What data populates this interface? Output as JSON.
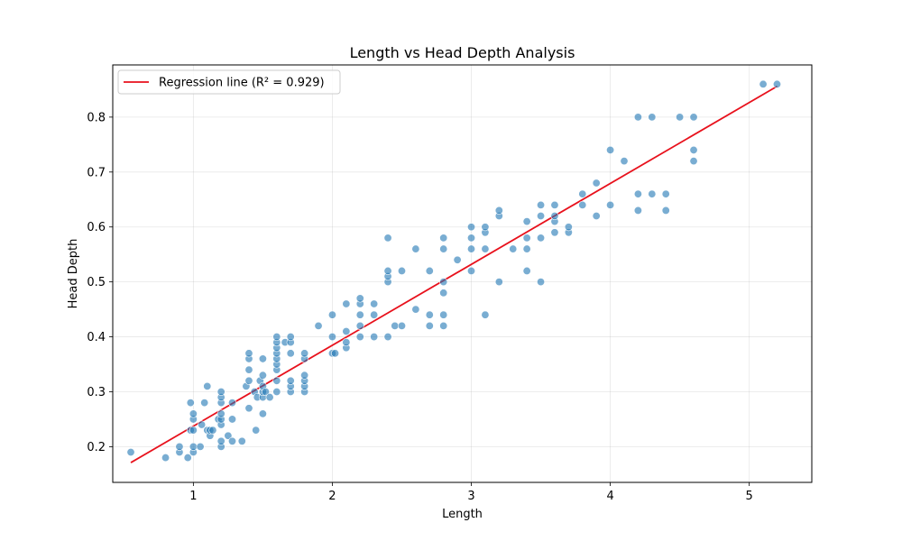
{
  "chart_data": {
    "type": "scatter",
    "title": "Length vs Head Depth Analysis",
    "xlabel": "Length",
    "ylabel": "Head Depth",
    "xlim": [
      0.42,
      5.45
    ],
    "ylim": [
      0.135,
      0.895
    ],
    "xticks": [
      1,
      2,
      3,
      4,
      5
    ],
    "yticks": [
      0.2,
      0.3,
      0.4,
      0.5,
      0.6,
      0.7,
      0.8
    ],
    "grid": true,
    "legend_position": "top-left",
    "colors": {
      "points": "#1f77b4",
      "line": "#e8111c"
    },
    "series": [
      {
        "type": "scatter",
        "points": [
          [
            0.55,
            0.19
          ],
          [
            0.8,
            0.18
          ],
          [
            0.9,
            0.19
          ],
          [
            0.9,
            0.2
          ],
          [
            0.96,
            0.18
          ],
          [
            0.98,
            0.23
          ],
          [
            0.98,
            0.28
          ],
          [
            1.0,
            0.19
          ],
          [
            1.0,
            0.2
          ],
          [
            1.0,
            0.23
          ],
          [
            1.0,
            0.25
          ],
          [
            1.0,
            0.26
          ],
          [
            1.05,
            0.2
          ],
          [
            1.06,
            0.24
          ],
          [
            1.08,
            0.28
          ],
          [
            1.1,
            0.23
          ],
          [
            1.1,
            0.31
          ],
          [
            1.12,
            0.22
          ],
          [
            1.12,
            0.23
          ],
          [
            1.14,
            0.23
          ],
          [
            1.18,
            0.25
          ],
          [
            1.2,
            0.2
          ],
          [
            1.2,
            0.21
          ],
          [
            1.2,
            0.24
          ],
          [
            1.2,
            0.25
          ],
          [
            1.2,
            0.26
          ],
          [
            1.2,
            0.28
          ],
          [
            1.2,
            0.29
          ],
          [
            1.2,
            0.3
          ],
          [
            1.25,
            0.22
          ],
          [
            1.28,
            0.21
          ],
          [
            1.28,
            0.25
          ],
          [
            1.28,
            0.28
          ],
          [
            1.35,
            0.21
          ],
          [
            1.38,
            0.31
          ],
          [
            1.4,
            0.27
          ],
          [
            1.4,
            0.32
          ],
          [
            1.4,
            0.34
          ],
          [
            1.4,
            0.36
          ],
          [
            1.4,
            0.37
          ],
          [
            1.44,
            0.3
          ],
          [
            1.45,
            0.23
          ],
          [
            1.46,
            0.29
          ],
          [
            1.48,
            0.32
          ],
          [
            1.5,
            0.26
          ],
          [
            1.5,
            0.29
          ],
          [
            1.5,
            0.3
          ],
          [
            1.5,
            0.31
          ],
          [
            1.5,
            0.33
          ],
          [
            1.5,
            0.36
          ],
          [
            1.52,
            0.3
          ],
          [
            1.55,
            0.29
          ],
          [
            1.6,
            0.3
          ],
          [
            1.6,
            0.32
          ],
          [
            1.6,
            0.34
          ],
          [
            1.6,
            0.35
          ],
          [
            1.6,
            0.36
          ],
          [
            1.6,
            0.37
          ],
          [
            1.6,
            0.38
          ],
          [
            1.6,
            0.39
          ],
          [
            1.6,
            0.4
          ],
          [
            1.66,
            0.39
          ],
          [
            1.7,
            0.3
          ],
          [
            1.7,
            0.31
          ],
          [
            1.7,
            0.32
          ],
          [
            1.7,
            0.37
          ],
          [
            1.7,
            0.39
          ],
          [
            1.7,
            0.4
          ],
          [
            1.8,
            0.3
          ],
          [
            1.8,
            0.31
          ],
          [
            1.8,
            0.32
          ],
          [
            1.8,
            0.33
          ],
          [
            1.8,
            0.36
          ],
          [
            1.8,
            0.37
          ],
          [
            1.9,
            0.42
          ],
          [
            2.0,
            0.37
          ],
          [
            2.0,
            0.4
          ],
          [
            2.0,
            0.44
          ],
          [
            2.02,
            0.37
          ],
          [
            2.1,
            0.38
          ],
          [
            2.1,
            0.39
          ],
          [
            2.1,
            0.41
          ],
          [
            2.1,
            0.46
          ],
          [
            2.2,
            0.4
          ],
          [
            2.2,
            0.42
          ],
          [
            2.2,
            0.44
          ],
          [
            2.2,
            0.46
          ],
          [
            2.2,
            0.47
          ],
          [
            2.3,
            0.4
          ],
          [
            2.3,
            0.44
          ],
          [
            2.3,
            0.46
          ],
          [
            2.4,
            0.4
          ],
          [
            2.4,
            0.5
          ],
          [
            2.4,
            0.51
          ],
          [
            2.4,
            0.52
          ],
          [
            2.4,
            0.58
          ],
          [
            2.45,
            0.42
          ],
          [
            2.5,
            0.42
          ],
          [
            2.5,
            0.52
          ],
          [
            2.6,
            0.45
          ],
          [
            2.6,
            0.56
          ],
          [
            2.7,
            0.42
          ],
          [
            2.7,
            0.44
          ],
          [
            2.7,
            0.52
          ],
          [
            2.8,
            0.42
          ],
          [
            2.8,
            0.44
          ],
          [
            2.8,
            0.48
          ],
          [
            2.8,
            0.5
          ],
          [
            2.8,
            0.56
          ],
          [
            2.8,
            0.58
          ],
          [
            2.9,
            0.54
          ],
          [
            3.0,
            0.52
          ],
          [
            3.0,
            0.56
          ],
          [
            3.0,
            0.58
          ],
          [
            3.0,
            0.6
          ],
          [
            3.1,
            0.44
          ],
          [
            3.1,
            0.56
          ],
          [
            3.1,
            0.59
          ],
          [
            3.1,
            0.6
          ],
          [
            3.2,
            0.5
          ],
          [
            3.2,
            0.62
          ],
          [
            3.2,
            0.63
          ],
          [
            3.3,
            0.56
          ],
          [
            3.4,
            0.52
          ],
          [
            3.4,
            0.56
          ],
          [
            3.4,
            0.58
          ],
          [
            3.4,
            0.61
          ],
          [
            3.5,
            0.5
          ],
          [
            3.5,
            0.58
          ],
          [
            3.5,
            0.62
          ],
          [
            3.5,
            0.64
          ],
          [
            3.6,
            0.59
          ],
          [
            3.6,
            0.61
          ],
          [
            3.6,
            0.62
          ],
          [
            3.6,
            0.64
          ],
          [
            3.7,
            0.59
          ],
          [
            3.7,
            0.6
          ],
          [
            3.8,
            0.64
          ],
          [
            3.8,
            0.66
          ],
          [
            3.9,
            0.62
          ],
          [
            3.9,
            0.68
          ],
          [
            4.0,
            0.64
          ],
          [
            4.0,
            0.74
          ],
          [
            4.1,
            0.72
          ],
          [
            4.2,
            0.63
          ],
          [
            4.2,
            0.66
          ],
          [
            4.2,
            0.8
          ],
          [
            4.3,
            0.66
          ],
          [
            4.3,
            0.8
          ],
          [
            4.4,
            0.63
          ],
          [
            4.4,
            0.66
          ],
          [
            4.5,
            0.8
          ],
          [
            4.6,
            0.72
          ],
          [
            4.6,
            0.74
          ],
          [
            4.6,
            0.8
          ],
          [
            5.1,
            0.86
          ],
          [
            5.2,
            0.86
          ]
        ]
      },
      {
        "type": "line",
        "name": "Regression line (R² = 0.929)",
        "points": [
          [
            0.55,
            0.171
          ],
          [
            5.2,
            0.856
          ]
        ]
      }
    ]
  }
}
